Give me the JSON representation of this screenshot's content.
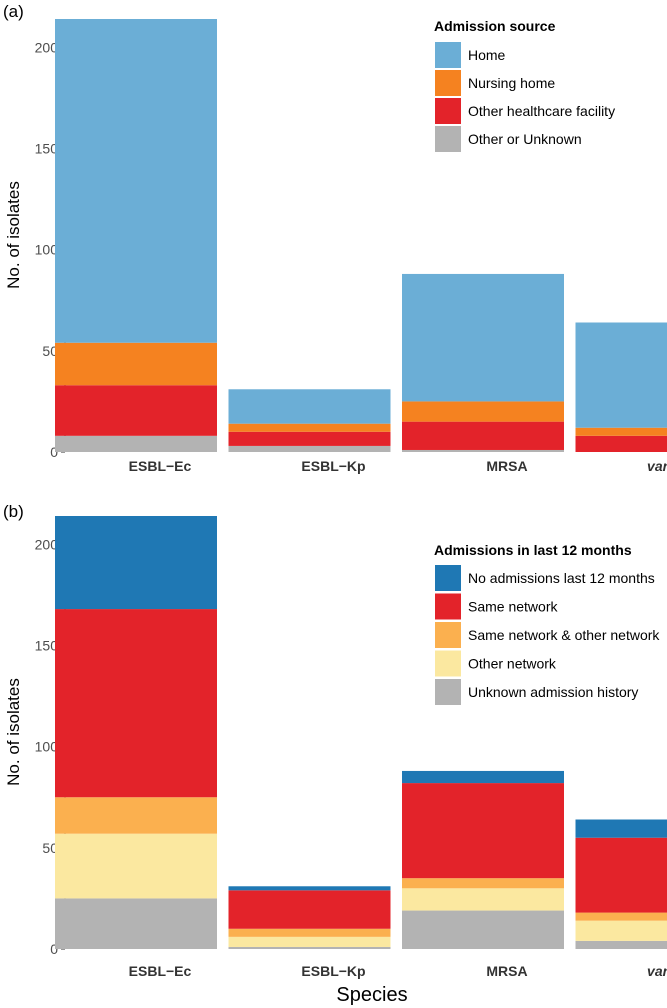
{
  "chart_data": [
    {
      "type": "bar",
      "stacked": true,
      "panel_label": "(a)",
      "categories": [
        "ESBL−Ec",
        "ESBL−Kp",
        "MRSA",
        "vanA VRE"
      ],
      "category_parts": [
        {
          "italic": "",
          "rest": "ESBL−Ec"
        },
        {
          "italic": "",
          "rest": "ESBL−Kp"
        },
        {
          "italic": "",
          "rest": "MRSA"
        },
        {
          "italic": "vanA",
          "rest": " VRE"
        }
      ],
      "ylabel": "No. of isolates",
      "xlabel": "",
      "ylim": [
        0,
        214
      ],
      "yticks": [
        0,
        50,
        100,
        150,
        200
      ],
      "legend_title": "Admission source",
      "legend_position": "top-right",
      "series": [
        {
          "name": "Other or Unknown",
          "color": "#b3b3b3",
          "values": [
            8,
            3,
            1,
            0
          ]
        },
        {
          "name": "Other healthcare facility",
          "color": "#e3232a",
          "values": [
            25,
            7,
            14,
            8
          ]
        },
        {
          "name": "Nursing home",
          "color": "#f58220",
          "values": [
            21,
            4,
            10,
            4
          ]
        },
        {
          "name": "Home",
          "color": "#6baed6",
          "values": [
            160,
            17,
            63,
            52
          ]
        }
      ],
      "legend_order": [
        "Home",
        "Nursing home",
        "Other healthcare facility",
        "Other or Unknown"
      ]
    },
    {
      "type": "bar",
      "stacked": true,
      "panel_label": "(b)",
      "categories": [
        "ESBL−Ec",
        "ESBL−Kp",
        "MRSA",
        "vanA VRE"
      ],
      "category_parts": [
        {
          "italic": "",
          "rest": "ESBL−Ec"
        },
        {
          "italic": "",
          "rest": "ESBL−Kp"
        },
        {
          "italic": "",
          "rest": "MRSA"
        },
        {
          "italic": "vanA",
          "rest": " VRE"
        }
      ],
      "ylabel": "No. of isolates",
      "xlabel": "Species",
      "ylim": [
        0,
        214
      ],
      "yticks": [
        0,
        50,
        100,
        150,
        200
      ],
      "legend_title": "Admissions in last 12 months",
      "legend_position": "right",
      "series": [
        {
          "name": "Unknown admission history",
          "color": "#b3b3b3",
          "values": [
            25,
            1,
            19,
            4
          ]
        },
        {
          "name": "Other network",
          "color": "#fbe8a0",
          "values": [
            32,
            5,
            11,
            10
          ]
        },
        {
          "name": "Same network & other network",
          "color": "#fbb04f",
          "values": [
            18,
            4,
            5,
            4
          ]
        },
        {
          "name": "Same network",
          "color": "#e3232a",
          "values": [
            93,
            19,
            47,
            37
          ]
        },
        {
          "name": "No admissions last 12 months",
          "color": "#1f78b4",
          "values": [
            46,
            2,
            6,
            9
          ]
        }
      ],
      "legend_order": [
        "No admissions last 12 months",
        "Same network",
        "Same network & other network",
        "Other network",
        "Unknown admission history"
      ]
    }
  ]
}
